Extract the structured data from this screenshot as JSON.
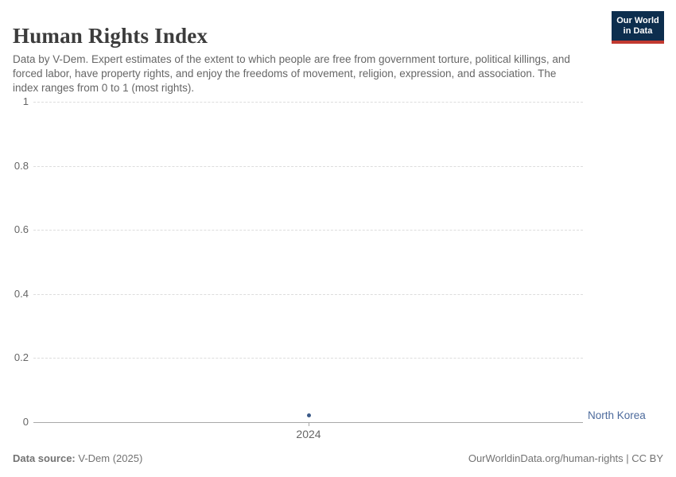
{
  "header": {
    "title": "Human Rights Index",
    "subtitle": "Data by V-Dem. Expert estimates of the extent to which people are free from government torture, political killings, and forced labor, have property rights, and enjoy the freedoms of movement, religion, expression, and association. The index ranges from 0 to 1 (most rights).",
    "logo": {
      "line1": "Our World",
      "line2": "in Data",
      "bg_color": "#0d2e4e",
      "accent_color": "#c13930"
    }
  },
  "chart_data": {
    "type": "scatter",
    "title": "Human Rights Index",
    "xlabel": "",
    "ylabel": "",
    "ylim": [
      0,
      1
    ],
    "y_ticks": [
      0,
      0.2,
      0.4,
      0.6,
      0.8,
      1
    ],
    "x_ticks": [
      "2024"
    ],
    "grid": "horizontal-dashed",
    "legend_position": "right-of-point",
    "series": [
      {
        "name": "North Korea",
        "color": "#3b5a88",
        "label_color": "#4c6a9c",
        "points": [
          {
            "x": 2024,
            "y": 0.02
          }
        ]
      }
    ],
    "colors": {
      "gridline": "#dddddd",
      "axis": "#a8a8a8",
      "tick_label": "#666666"
    }
  },
  "footer": {
    "source_label": "Data source:",
    "source_value": " V-Dem (2025)",
    "attribution": "OurWorldinData.org/human-rights | CC BY"
  }
}
